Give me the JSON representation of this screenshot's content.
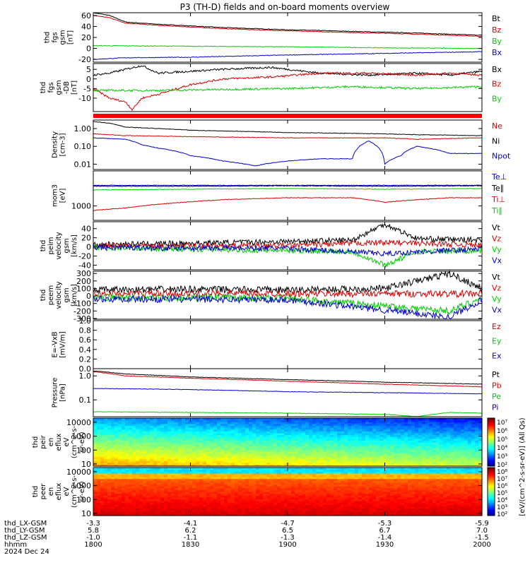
{
  "chart_data": {
    "type": "line",
    "title": "P3 (TH-D) fields and on-board moments overview",
    "time_axis": {
      "ticks": [
        "1800",
        "1830",
        "1900",
        "1930",
        "2000"
      ],
      "range": [
        "1800",
        "2000"
      ],
      "date_label": "2024 Dec 24",
      "ephemeris": [
        {
          "label": "thd_LX-GSM",
          "values": [
            "-3.3",
            "-4.1",
            "-4.7",
            "-5.3",
            "-5.9"
          ]
        },
        {
          "label": "thd_LY-GSM",
          "values": [
            "5.8",
            "6.2",
            "6.5",
            "6.7",
            "7.0"
          ]
        },
        {
          "label": "thd_LZ-GSM",
          "values": [
            "-1.0",
            "-1.1",
            "-1.3",
            "-1.4",
            "-1.5"
          ]
        },
        {
          "label": "hhmm",
          "values": [
            "1800",
            "1830",
            "1900",
            "1930",
            "2000"
          ]
        }
      ]
    },
    "panels": [
      {
        "id": "fgs",
        "ylabel": [
          "thd",
          "fgs",
          "gsm",
          "[nT]"
        ],
        "ylim": [
          -25,
          65
        ],
        "yscale": "linear",
        "ticks": [
          -20,
          0,
          20,
          40,
          60
        ],
        "series": [
          {
            "name": "Bt",
            "color": "#000000",
            "x": [
              0,
              5,
              10,
              20,
              40,
              60,
              80,
              100,
              120
            ],
            "y": [
              65,
              60,
              48,
              44,
              38,
              34,
              31,
              28,
              24
            ]
          },
          {
            "name": "Bz",
            "color": "#d40000",
            "x": [
              0,
              5,
              10,
              20,
              40,
              60,
              80,
              100,
              120
            ],
            "y": [
              60,
              56,
              46,
              42,
              36,
              32,
              29,
              26,
              22
            ]
          },
          {
            "name": "By",
            "color": "#00cc00",
            "x": [
              0,
              30,
              60,
              90,
              120
            ],
            "y": [
              5,
              4,
              3,
              1,
              0
            ]
          },
          {
            "name": "Bx",
            "color": "#0000cc",
            "x": [
              0,
              10,
              30,
              60,
              90,
              120
            ],
            "y": [
              -20,
              -17,
              -16,
              -12,
              -9,
              -6
            ]
          }
        ]
      },
      {
        "id": "fgs_dsl",
        "ylabel": [
          "thd",
          "fgs",
          "gsm",
          "-DB",
          "[nT]"
        ],
        "ylim": [
          -17,
          8
        ],
        "yscale": "linear",
        "ticks": [
          -10,
          -5,
          0,
          5
        ],
        "series": [
          {
            "name": "Bx",
            "color": "#000000",
            "x": [
              0,
              5,
              10,
              15,
              20,
              30,
              40,
              55,
              70,
              85,
              100,
              110,
              120
            ],
            "y": [
              2,
              3,
              5,
              7,
              3,
              4,
              5,
              6,
              3,
              2,
              3,
              2,
              4
            ]
          },
          {
            "name": "Bz",
            "color": "#d40000",
            "x": [
              0,
              5,
              10,
              12,
              15,
              20,
              30,
              40,
              55,
              70,
              85,
              100,
              110,
              120
            ],
            "y": [
              -5,
              -10,
              -12,
              -16,
              -10,
              -8,
              -3,
              0,
              1,
              3,
              3,
              2,
              3,
              2
            ]
          },
          {
            "name": "By",
            "color": "#00cc00",
            "x": [
              0,
              20,
              40,
              60,
              80,
              100,
              120
            ],
            "y": [
              -6,
              -6,
              -5.5,
              -5,
              -4,
              -5,
              -4
            ]
          }
        ]
      },
      {
        "id": "density",
        "ylabel": [
          "Density",
          "[cm-3]"
        ],
        "ylim": [
          0.005,
          3
        ],
        "yscale": "log",
        "ticks": [
          0.01,
          0.1,
          1
        ],
        "tick_labels": [
          "0.01",
          "0.10",
          "1.00"
        ],
        "series": [
          {
            "name": "Ne",
            "color": "#d40000",
            "x": [
              0,
              10,
              30,
              60,
              90,
              100,
              120
            ],
            "y": [
              0.5,
              0.4,
              0.35,
              0.3,
              0.3,
              0.25,
              0.3
            ]
          },
          {
            "name": "Ni",
            "color": "#000000",
            "x": [
              0,
              5,
              10,
              30,
              60,
              90,
              100,
              120
            ],
            "y": [
              2.5,
              2,
              1.2,
              0.8,
              0.6,
              0.5,
              0.45,
              0.4
            ]
          },
          {
            "name": "Npot",
            "color": "#0000cc",
            "x": [
              0,
              10,
              15,
              20,
              30,
              40,
              50,
              60,
              70,
              80,
              85,
              90,
              95,
              100,
              110,
              120
            ],
            "y": [
              0.3,
              0.25,
              0.12,
              0.08,
              0.03,
              0.015,
              0.008,
              0.015,
              0.02,
              0.02,
              0.2,
              0.01,
              0.03,
              0.1,
              0.04,
              0.04
            ]
          }
        ]
      },
      {
        "id": "temperature",
        "ylabel": [
          "mom3",
          "[eV]"
        ],
        "ylim": [
          200,
          50000
        ],
        "yscale": "log",
        "ticks": [
          1000
        ],
        "tick_labels": [
          "1000"
        ],
        "series": [
          {
            "name": "Te⊥",
            "color": "#0000cc",
            "x": [
              0,
              120
            ],
            "y": [
              10000,
              10000
            ]
          },
          {
            "name": "Te∥",
            "color": "#000000",
            "x": [
              0,
              30,
              60,
              90,
              120
            ],
            "y": [
              9000,
              9000,
              9500,
              9000,
              9500
            ]
          },
          {
            "name": "Ti⊥",
            "color": "#d40000",
            "x": [
              0,
              10,
              20,
              40,
              60,
              80,
              90,
              100,
              110,
              120
            ],
            "y": [
              600,
              800,
              1200,
              2000,
              2500,
              2500,
              1500,
              2000,
              2500,
              2500
            ]
          },
          {
            "name": "Ti∥",
            "color": "#00cc00",
            "x": [
              0,
              30,
              60,
              90,
              120
            ],
            "y": [
              6000,
              6500,
              7000,
              6500,
              7000
            ]
          }
        ]
      },
      {
        "id": "peim_velocity",
        "ylabel": [
          "thd",
          "peim",
          "velocity",
          "gsm",
          "[km/s]"
        ],
        "ylim": [
          -50,
          55
        ],
        "yscale": "linear",
        "ticks": [
          -40,
          -20,
          0,
          20,
          40
        ],
        "series": [
          {
            "name": "Vt",
            "color": "#000000",
            "x": [
              0,
              30,
              60,
              80,
              90,
              100,
              120
            ],
            "y": [
              5,
              8,
              12,
              15,
              50,
              18,
              15
            ]
          },
          {
            "name": "Vz",
            "color": "#d40000",
            "x": [
              0,
              60,
              90,
              120
            ],
            "y": [
              2,
              3,
              10,
              4
            ]
          },
          {
            "name": "Vy",
            "color": "#00cc00",
            "x": [
              0,
              30,
              60,
              80,
              90,
              100,
              120
            ],
            "y": [
              -2,
              -5,
              -8,
              -10,
              -40,
              -10,
              -8
            ]
          },
          {
            "name": "Vx",
            "color": "#0000cc",
            "x": [
              0,
              60,
              90,
              120
            ],
            "y": [
              -1,
              -3,
              -15,
              -4
            ]
          }
        ]
      },
      {
        "id": "peem_velocity",
        "ylabel": [
          "thd",
          "peem",
          "velocity",
          "gsm",
          "[km/s]"
        ],
        "ylim": [
          -310,
          330
        ],
        "yscale": "linear",
        "ticks": [
          -300,
          -200,
          -100,
          0,
          100,
          200,
          300
        ],
        "series": [
          {
            "name": "Vt",
            "color": "#000000",
            "x": [
              0,
              30,
              60,
              90,
              110,
              120
            ],
            "y": [
              80,
              90,
              80,
              100,
              300,
              100
            ]
          },
          {
            "name": "Vz",
            "color": "#d40000",
            "x": [
              0,
              60,
              120
            ],
            "y": [
              30,
              30,
              30
            ]
          },
          {
            "name": "Vy",
            "color": "#00cc00",
            "x": [
              0,
              60,
              110,
              120
            ],
            "y": [
              -20,
              -30,
              -200,
              -30
            ]
          },
          {
            "name": "Vx",
            "color": "#0000cc",
            "x": [
              0,
              60,
              110,
              120
            ],
            "y": [
              -40,
              -50,
              -280,
              -50
            ]
          }
        ]
      },
      {
        "id": "efield",
        "ylabel": [
          "E=-VxB",
          "[mV/m]"
        ],
        "ylim": [
          0,
          1
        ],
        "yscale": "linear",
        "ticks": [
          0,
          0.2,
          0.4,
          0.6,
          0.8,
          1.0
        ],
        "tick_labels": [
          "0.0",
          "0.2",
          "0.4",
          "0.6",
          "0.8",
          "1.0"
        ],
        "series": [
          {
            "name": "Ez",
            "color": "#d40000",
            "x": [],
            "y": []
          },
          {
            "name": "Ey",
            "color": "#00cc00",
            "x": [],
            "y": []
          },
          {
            "name": "Ex",
            "color": "#0000cc",
            "x": [],
            "y": []
          }
        ]
      },
      {
        "id": "pressure",
        "ylabel": [
          "Pressure",
          "[nPa]"
        ],
        "ylim": [
          0.02,
          2
        ],
        "yscale": "log",
        "ticks": [
          0.1,
          1
        ],
        "tick_labels": [
          "0.1",
          "1.0"
        ],
        "series": [
          {
            "name": "Pt",
            "color": "#000000",
            "x": [
              0,
              10,
              30,
              60,
              90,
              120
            ],
            "y": [
              1.6,
              1.2,
              0.9,
              0.7,
              0.55,
              0.45
            ]
          },
          {
            "name": "Pb",
            "color": "#d40000",
            "x": [
              0,
              10,
              30,
              60,
              90,
              120
            ],
            "y": [
              1.5,
              1.0,
              0.8,
              0.6,
              0.45,
              0.35
            ]
          },
          {
            "name": "Pe",
            "color": "#00cc00",
            "x": [
              0,
              30,
              60,
              90,
              100,
              110,
              120
            ],
            "y": [
              0.032,
              0.03,
              0.028,
              0.025,
              0.02,
              0.03,
              0.028
            ]
          },
          {
            "name": "Pi",
            "color": "#0000cc",
            "x": [
              0,
              30,
              60,
              90,
              120
            ],
            "y": [
              0.3,
              0.27,
              0.22,
              0.2,
              0.18
            ]
          }
        ]
      },
      {
        "id": "peir_spec",
        "type": "heatmap",
        "ylabel": [
          "thd",
          "peir",
          "en",
          "eflux",
          "eV",
          "(cm^2-s-",
          "sr-eV)"
        ],
        "yscale": "log",
        "ylim": [
          7,
          20000
        ],
        "ticks": [
          10,
          100,
          1000,
          10000
        ],
        "tick_labels": [
          "10",
          "100",
          "1000",
          "10000"
        ]
      },
      {
        "id": "peer_spec",
        "type": "heatmap",
        "ylabel": [
          "thd",
          "peer",
          "en",
          "eflux",
          "eV",
          "(cm^2-s-",
          "sr-eV)"
        ],
        "yscale": "log",
        "ylim": [
          7,
          20000
        ],
        "ticks": [
          10,
          100,
          1000,
          10000
        ],
        "tick_labels": [
          "10",
          "100",
          "1000",
          "10000"
        ]
      }
    ],
    "colorbar": {
      "label": "[eV/(cm^2-s-sr-eV)] (All Qs)",
      "peir_ticks": [
        "10⁷",
        "10⁶",
        "10⁵",
        "10⁴",
        "10³",
        "10²"
      ],
      "peer_ticks": [
        "10⁸",
        "10⁷",
        "10⁶",
        "10⁵",
        "10⁴",
        "10³",
        "10²"
      ]
    }
  }
}
